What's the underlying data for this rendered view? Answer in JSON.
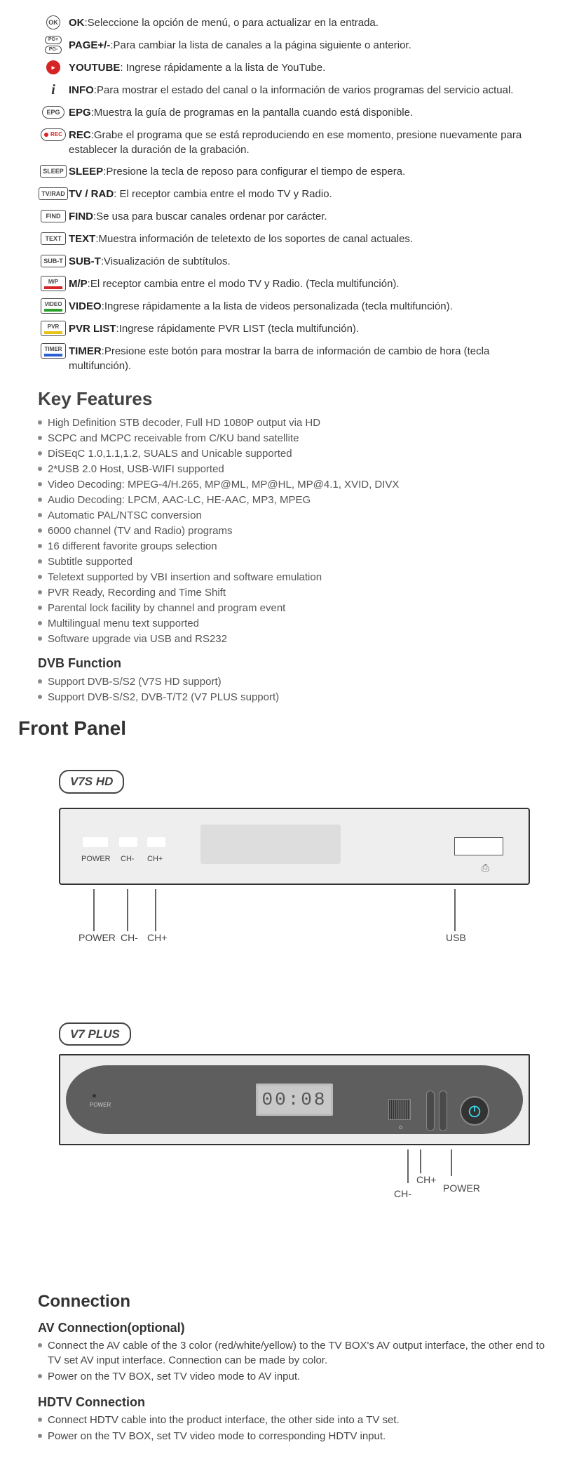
{
  "remote": [
    {
      "icon": "circle",
      "iconText": "OK",
      "key": "OK",
      "sep": ":",
      "desc": "Seleccione la opción de menú, o para actualizar en la entrada."
    },
    {
      "icon": "pg",
      "iconText": "",
      "key": "PAGE+/-",
      "sep": ":",
      "desc": "Para cambiar la lista de canales a la página siguiente o anterior."
    },
    {
      "icon": "circle-red",
      "iconText": "▶",
      "key": "YOUTUBE",
      "sep": ": ",
      "desc": "Ingrese rápidamente a la lista de YouTube."
    },
    {
      "icon": "i",
      "iconText": "i",
      "key": "INFO",
      "sep": ":",
      "desc": "Para mostrar el estado del canal o la información de varios programas del servicio actual."
    },
    {
      "icon": "oval",
      "iconText": "EPG",
      "key": "EPG",
      "sep": ":",
      "desc": "Muestra la guía de programas en la pantalla cuando está disponible."
    },
    {
      "icon": "rec",
      "iconText": "REC",
      "key": "REC",
      "sep": ":",
      "desc": "Grabe el programa que se está reproduciendo en ese momento, presione nuevamente para establecer la duración de la grabación."
    },
    {
      "icon": "rect",
      "iconText": "SLEEP",
      "key": "SLEEP",
      "sep": ":",
      "desc": "Presione la tecla de reposo para configurar el tiempo de espera."
    },
    {
      "icon": "rect",
      "iconText": "TV/RAD",
      "key": "TV / RAD",
      "sep": ": ",
      "desc": "El receptor cambia entre el modo TV y Radio."
    },
    {
      "icon": "rect",
      "iconText": "FIND",
      "key": "FIND",
      "sep": ":",
      "desc": "Se usa para buscar canales ordenar por carácter."
    },
    {
      "icon": "rect",
      "iconText": "TEXT",
      "key": "TEXT",
      "sep": ":",
      "desc": "Muestra información de teletexto de los soportes de canal actuales."
    },
    {
      "icon": "rect",
      "iconText": "SUB-T",
      "key": "SUB-T",
      "sep": ":",
      "desc": "Visualización de subtítulos."
    },
    {
      "icon": "mp",
      "iconText": "M/P",
      "key": "M/P",
      "sep": ":",
      "desc": "El receptor cambia entre el modo TV y Radio. (Tecla multifunción)."
    },
    {
      "icon": "video",
      "iconText": "VIDEO",
      "key": "VIDEO",
      "sep": ":",
      "desc": "Ingrese rápidamente a la lista de videos personalizada (tecla multifunción)."
    },
    {
      "icon": "pvr",
      "iconText": "PVR",
      "key": "PVR LIST",
      "sep": ":",
      "desc": "Ingrese rápidamente PVR LIST (tecla multifunción)."
    },
    {
      "icon": "timer",
      "iconText": "TIMER",
      "key": "TIMER",
      "sep": ":",
      "desc": "Presione este botón para mostrar la barra de información de cambio de hora (tecla multifunción)."
    }
  ],
  "keyFeatures": {
    "title": "Key Features",
    "items": [
      "High Definition STB decoder, Full HD 1080P output via HD",
      "SCPC and MCPC receivable from C/KU band satellite",
      "DiSEqC 1.0,1.1,1.2, SUALS and Unicable supported",
      "2*USB 2.0 Host, USB-WIFI supported",
      "Video Decoding: MPEG-4/H.265, MP@ML, MP@HL, MP@4.1, XVID, DIVX",
      "Audio Decoding: LPCM, AAC-LC, HE-AAC, MP3, MPEG",
      "Automatic PAL/NTSC conversion",
      "6000 channel (TV and Radio) programs",
      "16 different favorite groups selection",
      "Subtitle supported",
      "Teletext supported by VBI insertion and software emulation",
      "PVR Ready, Recording and Time Shift",
      "Parental lock facility by channel and program event",
      "Multilingual menu text supported",
      "Software upgrade via USB and RS232"
    ],
    "dvbTitle": "DVB Function",
    "dvb": [
      "Support DVB-S/S2 (V7S HD support)",
      "Support DVB-S/S2, DVB-T/T2 (V7 PLUS support)"
    ]
  },
  "frontPanel": {
    "title": "Front Panel",
    "v7s": {
      "label": "V7S HD",
      "btnLabels": {
        "power": "POWER",
        "chm": "CH-",
        "chp": "CH+"
      },
      "callouts": {
        "power": "POWER",
        "chm": "CH-",
        "chp": "CH+",
        "usb": "USB"
      }
    },
    "v7p": {
      "label": "V7 PLUS",
      "lcd": "00:08",
      "powerLabel": "POWER",
      "callouts": {
        "chm": "CH-",
        "chp": "CH+",
        "power": "POWER"
      }
    }
  },
  "connection": {
    "title": "Connection",
    "av": {
      "title": "AV Connection(optional)",
      "items": [
        "Connect the AV cable of the 3 color (red/white/yellow) to the TV BOX's AV output interface, the other end to TV set AV input interface. Connection can be made by color.",
        "Power on the TV BOX, set TV video mode to AV input."
      ]
    },
    "hdtv": {
      "title": "HDTV Connection",
      "items": [
        "Connect HDTV cable into the product interface, the other side into a TV set.",
        "Power on the TV BOX, set TV video mode to corresponding HDTV input."
      ]
    }
  },
  "colors": {
    "red": "#d62424",
    "green": "#2aa02a",
    "yellow": "#e8c41a",
    "blue": "#2a5fd6"
  }
}
